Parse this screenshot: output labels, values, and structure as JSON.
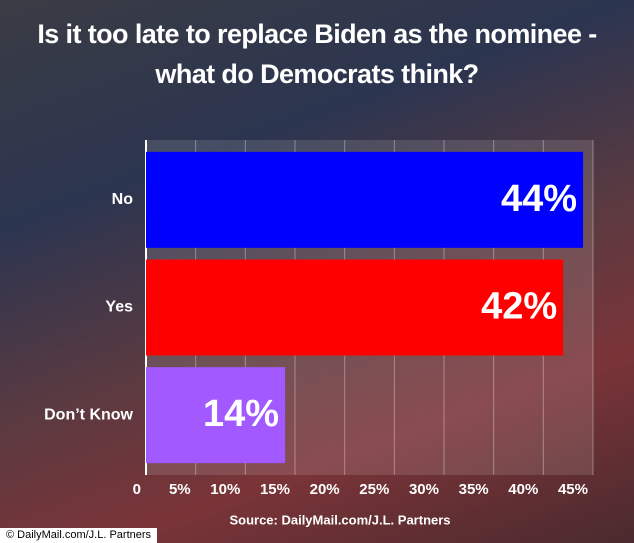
{
  "chart_data": {
    "type": "barh",
    "title": "Is it too late to replace Biden as the nominee - what do Democrats think?",
    "categories": [
      "No",
      "Yes",
      "Don’t Know"
    ],
    "values": [
      44,
      42,
      14
    ],
    "value_labels": [
      "44%",
      "42%",
      "14%"
    ],
    "colors": [
      "#0000ff",
      "#ff0000",
      "#a259ff"
    ],
    "xlim": [
      0,
      45
    ],
    "xticks": [
      0,
      {
        "value": 5,
        "label": "5%"
      },
      {
        "value": 10,
        "label": "10%"
      },
      {
        "value": 15,
        "label": "15%"
      },
      {
        "value": 20,
        "label": "20%"
      },
      {
        "value": 25,
        "label": "25%"
      },
      {
        "value": 30,
        "label": "30%"
      },
      {
        "value": 35,
        "label": "35%"
      },
      {
        "value": 40,
        "label": "40%"
      },
      {
        "value": 45,
        "label": "45%"
      }
    ],
    "grid": true,
    "source": "Source: DailyMail.com/J.L. Partners",
    "watermark": "© DailyMail.com/J.L. Partners"
  }
}
